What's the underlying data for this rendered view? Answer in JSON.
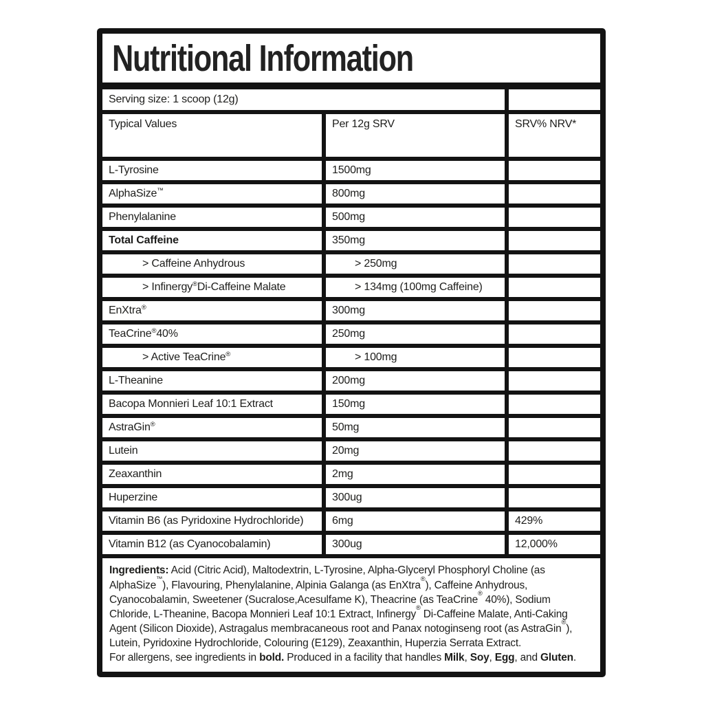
{
  "label": {
    "title": "Nutritional Information",
    "serving_size": "Serving size: 1 scoop (12g)",
    "columns": [
      "Typical Values",
      "Per 12g SRV",
      "SRV% NRV*"
    ],
    "rows": [
      {
        "name": "L-Tyrosine",
        "amount": "1500mg",
        "nrv": "",
        "bold": false,
        "indent": false
      },
      {
        "name": "AlphaSize™",
        "amount": "800mg",
        "nrv": "",
        "bold": false,
        "indent": false
      },
      {
        "name": "Phenylalanine",
        "amount": "500mg",
        "nrv": "",
        "bold": false,
        "indent": false
      },
      {
        "name": "Total Caffeine",
        "amount": "350mg",
        "nrv": "",
        "bold": true,
        "indent": false
      },
      {
        "name": "> Caffeine Anhydrous",
        "amount": "> 250mg",
        "nrv": "",
        "bold": false,
        "indent": true
      },
      {
        "name": "> Infinergy® Di-Caffeine Malate",
        "amount": "> 134mg (100mg Caffeine)",
        "nrv": "",
        "bold": false,
        "indent": true
      },
      {
        "name": "EnXtra®",
        "amount": "300mg",
        "nrv": "",
        "bold": false,
        "indent": false
      },
      {
        "name": "TeaCrine® 40%",
        "amount": "250mg",
        "nrv": "",
        "bold": false,
        "indent": false
      },
      {
        "name": "> Active TeaCrine®",
        "amount": "> 100mg",
        "nrv": "",
        "bold": false,
        "indent": true
      },
      {
        "name": "L-Theanine",
        "amount": "200mg",
        "nrv": "",
        "bold": false,
        "indent": false
      },
      {
        "name": "Bacopa Monnieri Leaf 10:1 Extract",
        "amount": "150mg",
        "nrv": "",
        "bold": false,
        "indent": false
      },
      {
        "name": "AstraGin®",
        "amount": "50mg",
        "nrv": "",
        "bold": false,
        "indent": false
      },
      {
        "name": "Lutein",
        "amount": "20mg",
        "nrv": "",
        "bold": false,
        "indent": false
      },
      {
        "name": "Zeaxanthin",
        "amount": "2mg",
        "nrv": "",
        "bold": false,
        "indent": false
      },
      {
        "name": "Huperzine",
        "amount": "300ug",
        "nrv": "",
        "bold": false,
        "indent": false
      },
      {
        "name": "Vitamin B6 (as Pyridoxine Hydrochloride)",
        "amount": "6mg",
        "nrv": "429%",
        "bold": false,
        "indent": false
      },
      {
        "name": "Vitamin B12 (as Cyanocobalamin)",
        "amount": "300ug",
        "nrv": "12,000%",
        "bold": false,
        "indent": false
      }
    ],
    "ingredients_label": "Ingredients:",
    "ingredients_text": " Acid (Citric Acid), Maltodextrin, L-Tyrosine, Alpha-Glyceryl Phosphoryl Choline (as AlphaSize™), Flavouring, Phenylalanine, Alpinia Galanga (as EnXtra®), Caffeine Anhydrous, Cyanocobalamin, Sweetener (Sucralose,Acesulfame K), Theacrine (as TeaCrine® 40%), Sodium Chloride, L-Theanine, Bacopa Monnieri Leaf 10:1 Extract, Infinergy® Di-Caffeine Malate, Anti-Caking Agent (Silicon Dioxide), Astragalus membracaneous root and Panax notoginseng root (as AstraGin®), Lutein, Pyridoxine Hydrochloride, Colouring (E129), Zeaxanthin, Huperzia Serrata Extract.",
    "allergen_segments": [
      {
        "text": "For allergens, see ingredients in ",
        "bold": false
      },
      {
        "text": "bold.",
        "bold": true
      },
      {
        "text": " Produced in a facility that handles ",
        "bold": false
      },
      {
        "text": "Milk",
        "bold": true
      },
      {
        "text": ", ",
        "bold": false
      },
      {
        "text": "Soy",
        "bold": true
      },
      {
        "text": ", ",
        "bold": false
      },
      {
        "text": "Egg",
        "bold": true
      },
      {
        "text": ", and ",
        "bold": false
      },
      {
        "text": "Gluten",
        "bold": true
      },
      {
        "text": ".",
        "bold": false
      }
    ],
    "colors": {
      "frame": "#131313",
      "text": "#1d1d1b",
      "background": "#ffffff"
    }
  }
}
